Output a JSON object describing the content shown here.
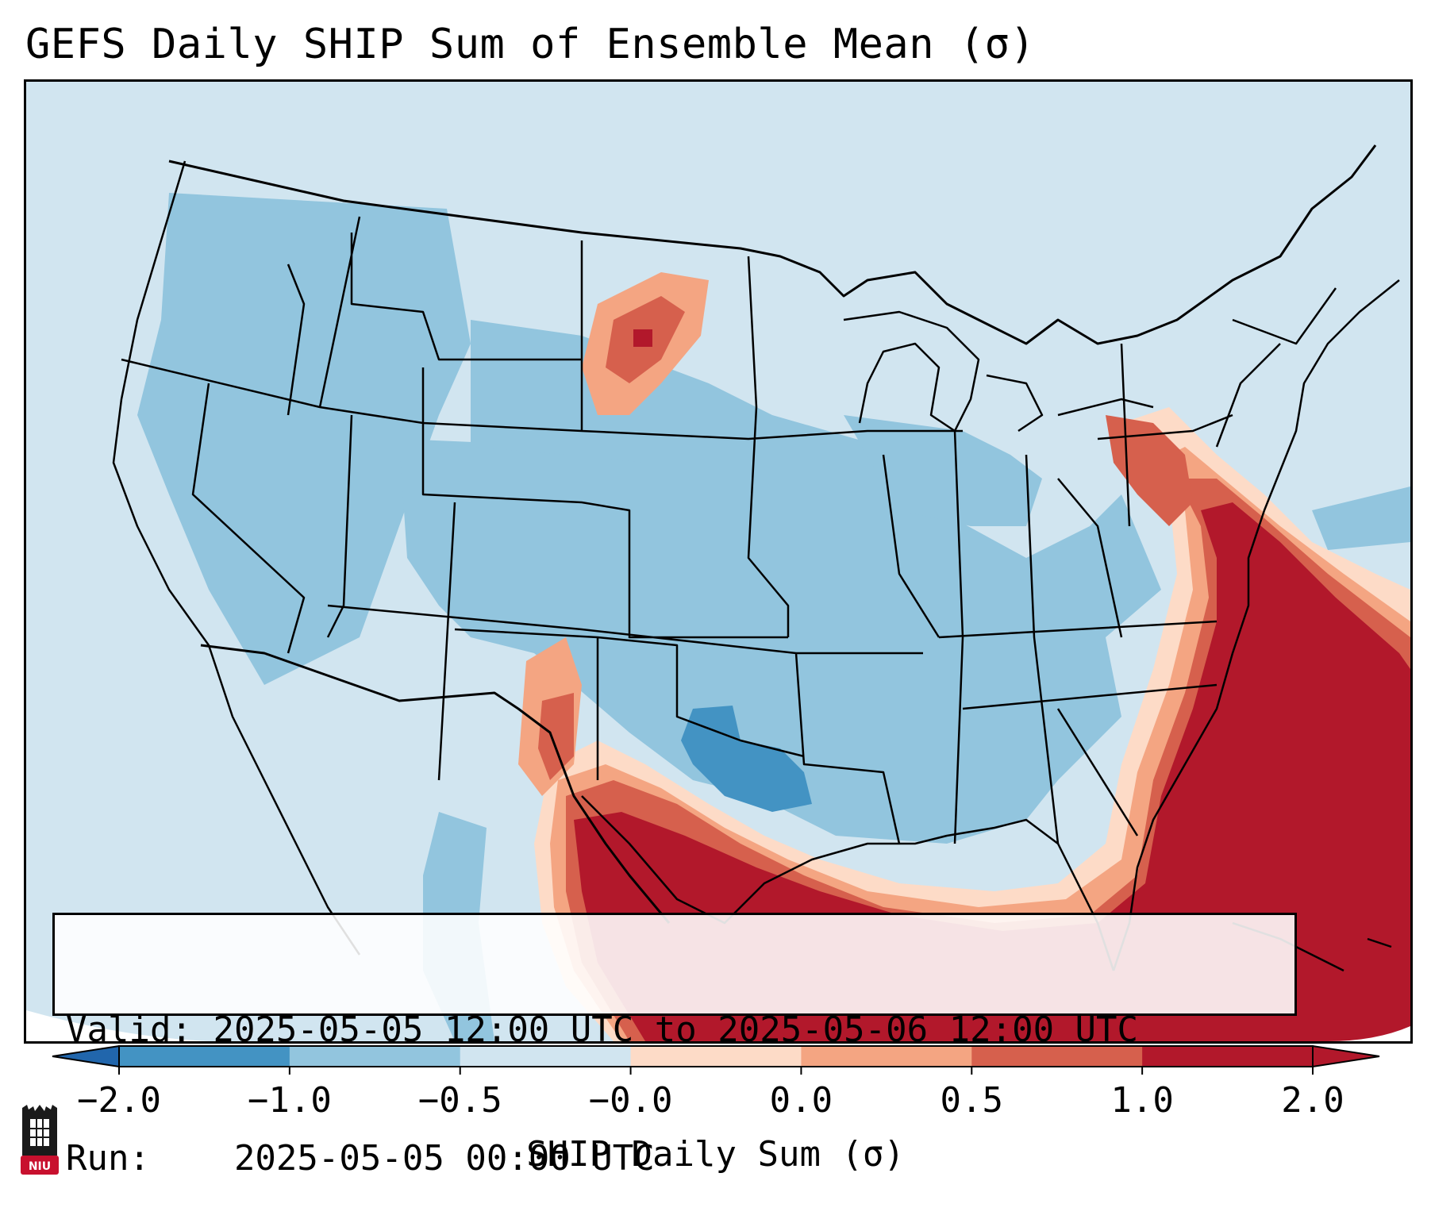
{
  "title": "GEFS Daily SHIP Sum of Ensemble Mean (σ)",
  "info": {
    "valid_label": "Valid:",
    "valid_value": "2025-05-05 12:00 UTC to 2025-05-06 12:00 UTC",
    "run_label": "Run:",
    "run_value": "2025-05-05 00:00 UTC"
  },
  "colorbar": {
    "label": "SHIP Daily Sum (σ)",
    "ticks": [
      "−2.0",
      "−1.0",
      "−0.5",
      "−0.0",
      "0.0",
      "0.5",
      "1.0",
      "2.0"
    ],
    "colors": [
      "#4393c3",
      "#92c5de",
      "#d1e5f0",
      "#fddbc7",
      "#f4a582",
      "#d6604d",
      "#b2182b"
    ],
    "extend_low_color": "#2166ac",
    "extend_high_color": "#b2182b"
  },
  "logo": {
    "text": "NIU",
    "color": "#c8102e"
  },
  "map": {
    "projection": "Lambert Conformal, CONUS",
    "region": "Contiguous United States",
    "features": [
      "state boundaries",
      "country boundaries",
      "coastlines",
      "Great Lakes"
    ],
    "field_summary": {
      "strongly_positive": [
        "Gulf of Mexico",
        "Texas",
        "Florida",
        "Southeast Atlantic coast",
        "Mid-Atlantic coast",
        "western Atlantic"
      ],
      "moderately_positive": [
        "eastern New Mexico",
        "western North Dakota",
        "eastern Pennsylvania",
        "New Jersey"
      ],
      "negative": [
        "Oklahoma",
        "Great Plains",
        "Rockies",
        "Midwest",
        "Southeast interior"
      ]
    }
  }
}
